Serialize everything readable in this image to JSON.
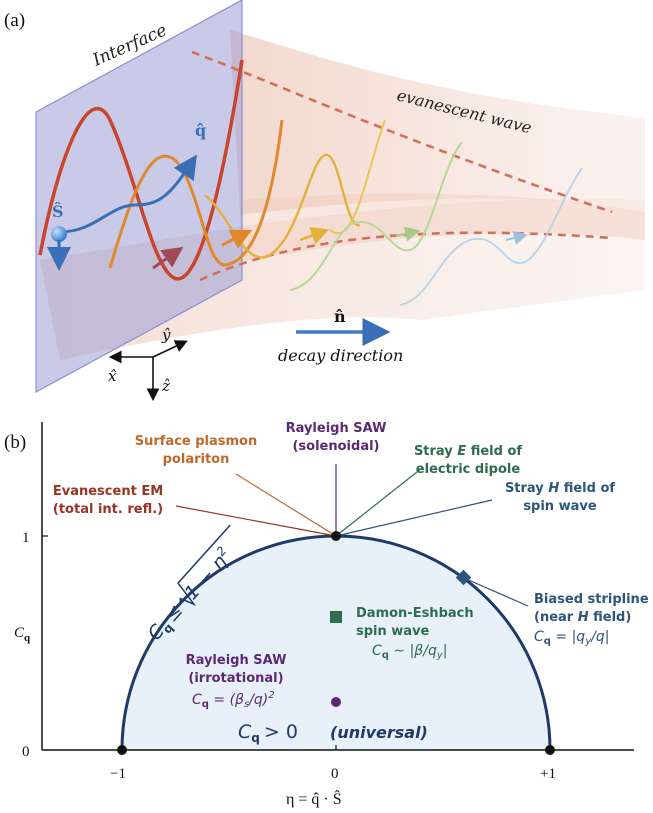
{
  "panel_a": {
    "label": "(a)",
    "interface_label": "Interface",
    "evanescent_label": "evanescent wave",
    "q_hat": "q̂",
    "s_hat": "Ŝ",
    "n_hat": "n̂",
    "decay_label": "decay direction",
    "axis_y": "ŷ",
    "axis_x": "x̂",
    "axis_z": "ẑ"
  },
  "panel_b": {
    "label": "(b)",
    "ylabel": "C",
    "ylabel_sub": "q",
    "xlabel": "η = q̂ · Ŝ",
    "x_ticks": [
      "−1",
      "0",
      "+1"
    ],
    "y_ticks": [
      "0",
      "1"
    ],
    "bound_label": "C",
    "bound_sub": "q",
    "bound_rel": "≤",
    "bound_expr": "1 − η",
    "bound_exp": "2",
    "universal_main": "> 0",
    "universal_sub": "q",
    "universal_c": "C",
    "universal_tag": "(universal)",
    "labels": {
      "rayleigh_sol_1": "Rayleigh SAW",
      "rayleigh_sol_2": "(solenoidal)",
      "plasmon_1": "Surface plasmon",
      "plasmon_2": "polariton",
      "evanescent_1": "Evanescent EM",
      "evanescent_2": "(total int. refl.)",
      "strayE_1a": "Stray ",
      "strayE_1b": "E",
      "strayE_1c": " field of",
      "strayE_2": "electric dipole",
      "strayH_1a": "Stray ",
      "strayH_1b": "H",
      "strayH_1c": " field of",
      "strayH_2": "spin wave",
      "stripline_1": "Biased stripline",
      "stripline_2a": "(near ",
      "stripline_2b": "H",
      "stripline_2c": " field)",
      "stripline_3": "C",
      "stripline_3sub": "q",
      "stripline_3rest": " = |q",
      "stripline_3y": "y",
      "stripline_3end": "/q|",
      "damon_1": "Damon-Eshbach",
      "damon_2": "spin wave",
      "damon_3": "C",
      "damon_3sub": "q",
      "damon_3rest": " ∼ |β/q",
      "damon_3y": "y",
      "damon_3end": "|",
      "rayleigh_irr_1": "Rayleigh SAW",
      "rayleigh_irr_2": "(irrotational)",
      "rayleigh_irr_3": "C",
      "rayleigh_irr_3sub": "q",
      "rayleigh_irr_3rest": " = (β",
      "rayleigh_irr_3s": "s",
      "rayleigh_irr_3end": "/q)",
      "rayleigh_irr_3exp": "2"
    },
    "colors": {
      "semicircle": "#1f3a68",
      "fill": "#e8f1fa",
      "rayleigh": "#5b2a72",
      "plasmon": "#c0672a",
      "evanescent": "#9a3324",
      "strayE": "#2f6b50",
      "strayH": "#2e557a",
      "damon": "#2f6b50"
    }
  }
}
